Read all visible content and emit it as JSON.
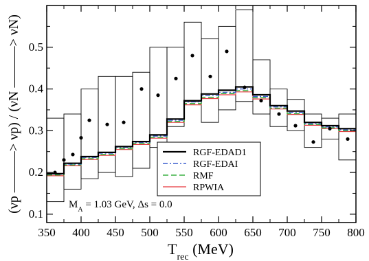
{
  "chart_data": {
    "type": "line",
    "title": "",
    "xlabel": "T",
    "xlabel_sub": "rec",
    "xlabel_unit": " (MeV)",
    "ylabel": "(νp ———> νp) / (νN ———> νN)",
    "xlim": [
      350,
      800
    ],
    "ylim": [
      0.08,
      0.6
    ],
    "x_ticks": [
      350,
      400,
      450,
      500,
      550,
      600,
      650,
      700,
      750,
      800
    ],
    "y_ticks": [
      0.1,
      0.2,
      0.3,
      0.4,
      0.5
    ],
    "grid": false,
    "legend_position": "lower-right",
    "annotation": {
      "m_symbol": "M",
      "m_sub": "A",
      "m_value": " = 1.03 GeV,  ",
      "ds_label": "Δs = 0.0"
    },
    "bin_edges": [
      350,
      375,
      400,
      425,
      450,
      475,
      500,
      525,
      550,
      575,
      600,
      625,
      650,
      675,
      700,
      725,
      750,
      775,
      800
    ],
    "series": [
      {
        "name": "RGF-EDAD1",
        "color": "#000000",
        "dash": "",
        "width": 2.2,
        "values": [
          0.197,
          0.222,
          0.238,
          0.248,
          0.262,
          0.274,
          0.29,
          0.328,
          0.372,
          0.388,
          0.397,
          0.405,
          0.386,
          0.36,
          0.347,
          0.32,
          0.312,
          0.305
        ]
      },
      {
        "name": "RGF-EDAI",
        "color": "#3a5fcd",
        "dash": "7 3 2 3",
        "width": 1.4,
        "values": [
          0.196,
          0.22,
          0.236,
          0.246,
          0.26,
          0.272,
          0.287,
          0.325,
          0.369,
          0.384,
          0.392,
          0.4,
          0.382,
          0.357,
          0.344,
          0.317,
          0.309,
          0.302
        ]
      },
      {
        "name": "RMF",
        "color": "#3cb043",
        "dash": "8 4",
        "width": 1.6,
        "values": [
          0.194,
          0.218,
          0.233,
          0.243,
          0.257,
          0.269,
          0.284,
          0.322,
          0.365,
          0.38,
          0.389,
          0.396,
          0.379,
          0.354,
          0.341,
          0.315,
          0.307,
          0.3
        ]
      },
      {
        "name": "RPWIA",
        "color": "#e8383d",
        "dash": "",
        "width": 1.2,
        "values": [
          0.192,
          0.216,
          0.231,
          0.241,
          0.255,
          0.267,
          0.282,
          0.32,
          0.362,
          0.377,
          0.386,
          0.393,
          0.376,
          0.352,
          0.339,
          0.313,
          0.305,
          0.298
        ]
      }
    ],
    "experiment": {
      "points": [
        0.2,
        0.23,
        0.243,
        0.283,
        0.325,
        0.315,
        0.32,
        0.4,
        0.385,
        0.425,
        0.48,
        0.43,
        0.49,
        0.404,
        0.372,
        0.34,
        0.312,
        0.273,
        0.305,
        0.28
      ],
      "x": [
        362,
        375,
        388,
        400,
        412,
        438,
        462,
        488,
        512,
        538,
        562,
        588,
        612,
        638,
        662,
        688,
        712,
        738,
        762,
        788
      ],
      "boxes": [
        {
          "x0": 350,
          "x1": 375,
          "low": 0.13,
          "high": 0.33
        },
        {
          "x0": 375,
          "x1": 400,
          "low": 0.16,
          "high": 0.34
        },
        {
          "x0": 400,
          "x1": 425,
          "low": 0.185,
          "high": 0.4
        },
        {
          "x0": 425,
          "x1": 450,
          "low": 0.2,
          "high": 0.43
        },
        {
          "x0": 450,
          "x1": 475,
          "low": 0.19,
          "high": 0.43
        },
        {
          "x0": 475,
          "x1": 500,
          "low": 0.21,
          "high": 0.44
        },
        {
          "x0": 500,
          "x1": 525,
          "low": 0.26,
          "high": 0.5
        },
        {
          "x0": 525,
          "x1": 550,
          "low": 0.31,
          "high": 0.5
        },
        {
          "x0": 550,
          "x1": 575,
          "low": 0.37,
          "high": 0.56
        },
        {
          "x0": 575,
          "x1": 600,
          "low": 0.32,
          "high": 0.52
        },
        {
          "x0": 600,
          "x1": 625,
          "low": 0.35,
          "high": 0.55
        },
        {
          "x0": 625,
          "x1": 650,
          "low": 0.37,
          "high": 0.59
        },
        {
          "x0": 650,
          "x1": 675,
          "low": 0.34,
          "high": 0.47
        },
        {
          "x0": 675,
          "x1": 700,
          "low": 0.31,
          "high": 0.4
        },
        {
          "x0": 700,
          "x1": 725,
          "low": 0.3,
          "high": 0.375
        },
        {
          "x0": 725,
          "x1": 750,
          "low": 0.26,
          "high": 0.34
        },
        {
          "x0": 750,
          "x1": 775,
          "low": 0.28,
          "high": 0.33
        },
        {
          "x0": 775,
          "x1": 800,
          "low": 0.23,
          "high": 0.34
        }
      ]
    }
  }
}
